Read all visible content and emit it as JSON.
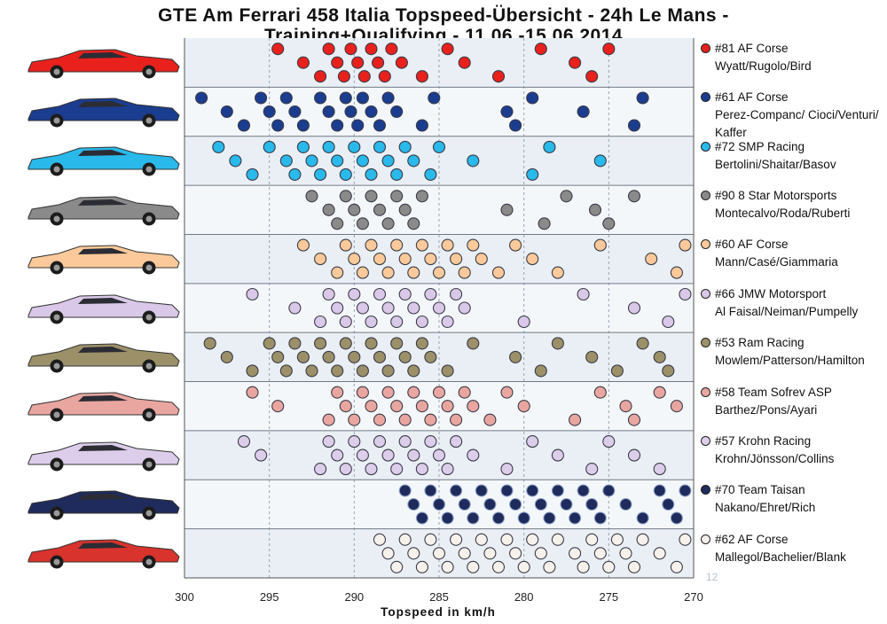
{
  "chart_data": {
    "type": "scatter",
    "title_lines": [
      "GTE Am Ferrari 458 Italia Topspeed-Übersicht - 24h Le Mans -",
      "Training+Qualifying - 11.06.-15.06.2014"
    ],
    "xlabel": "Topspeed in km/h",
    "xlim": [
      300,
      270
    ],
    "x_reversed": true,
    "x_ticks": [
      "300",
      "295",
      "290",
      "285",
      "280",
      "275",
      "270"
    ],
    "grid": true,
    "legend_position": "right",
    "series": [
      {
        "name": "#81 AF Corse",
        "drivers": "Wyatt/Rugolo/Bird",
        "color": "#e8211d",
        "values": [
          294.5,
          293.0,
          292.0,
          291.5,
          291.0,
          290.6,
          290.2,
          289.8,
          289.4,
          289.0,
          288.6,
          288.2,
          287.8,
          287.2,
          286.0,
          284.5,
          283.5,
          281.5,
          279.0,
          277.0,
          276.0,
          275.0
        ]
      },
      {
        "name": "#61 AF Corse",
        "drivers": "Perez-Companc/ Cioci/Venturi/ Kaffer",
        "color": "#1b3d8f",
        "values": [
          299.0,
          297.5,
          296.5,
          295.5,
          295.0,
          294.5,
          294.0,
          293.5,
          293.0,
          292.0,
          291.5,
          291.0,
          290.5,
          290.2,
          289.8,
          289.5,
          289.0,
          288.5,
          288.0,
          287.5,
          286.0,
          285.3,
          281.0,
          280.5,
          279.5,
          276.5,
          273.5,
          273.0
        ]
      },
      {
        "name": "#72 SMP Racing",
        "drivers": "Bertolini/Shaitar/Basov",
        "color": "#29b9ea",
        "values": [
          298.0,
          297.0,
          296.0,
          295.0,
          294.0,
          293.5,
          293.0,
          292.5,
          292.0,
          291.5,
          291.0,
          290.5,
          290.0,
          289.5,
          289.0,
          288.5,
          288.0,
          287.5,
          287.0,
          286.5,
          285.5,
          285.0,
          283.0,
          279.5,
          278.5,
          275.5
        ]
      },
      {
        "name": "#90 8 Star Motorsports",
        "drivers": "Montecalvo/Roda/Ruberti",
        "color": "#8a8a8a",
        "values": [
          292.5,
          291.5,
          291.0,
          290.5,
          290.0,
          289.5,
          289.0,
          288.5,
          288.0,
          287.5,
          287.0,
          286.5,
          286.0,
          281.0,
          278.8,
          277.5,
          275.8,
          275.0,
          273.5
        ]
      },
      {
        "name": "#60 AF Corse",
        "drivers": "Mann/Casé/Giammaria",
        "color": "#fcc99a",
        "values": [
          293.0,
          292.0,
          291.0,
          290.5,
          290.0,
          289.5,
          289.0,
          288.5,
          288.0,
          287.5,
          287.0,
          286.5,
          286.0,
          285.5,
          285.0,
          284.5,
          284.0,
          283.5,
          283.0,
          282.5,
          281.5,
          280.5,
          279.5,
          278.0,
          275.5,
          272.5,
          271.0,
          270.5
        ]
      },
      {
        "name": "#66 JMW Motorsport",
        "drivers": "Al Faisal/Neiman/Pumpelly",
        "color": "#d9c8e8",
        "values": [
          296.0,
          293.5,
          292.0,
          291.5,
          291.0,
          290.5,
          290.0,
          289.5,
          289.0,
          288.5,
          288.0,
          287.5,
          287.0,
          286.5,
          286.0,
          285.5,
          285.0,
          284.5,
          284.0,
          283.5,
          280.0,
          276.5,
          273.5,
          271.5,
          270.5
        ]
      },
      {
        "name": "#53 Ram Racing",
        "drivers": "Mowlem/Patterson/Hamilton",
        "color": "#9c9069",
        "values": [
          298.5,
          297.5,
          296.0,
          295.0,
          294.5,
          294.0,
          293.5,
          293.0,
          292.5,
          292.0,
          291.5,
          291.0,
          290.5,
          290.0,
          289.5,
          289.0,
          288.5,
          288.0,
          287.5,
          287.0,
          286.5,
          286.0,
          285.5,
          284.5,
          283.0,
          280.5,
          279.0,
          278.0,
          276.0,
          274.5,
          273.0,
          272.0,
          271.5
        ]
      },
      {
        "name": "#58 Team Sofrev ASP",
        "drivers": "Barthez/Pons/Ayari",
        "color": "#e9a6a0",
        "values": [
          296.0,
          294.5,
          291.5,
          291.0,
          290.5,
          290.0,
          289.5,
          289.0,
          288.5,
          288.0,
          287.5,
          287.0,
          286.5,
          286.0,
          285.5,
          285.0,
          284.5,
          284.0,
          283.5,
          283.0,
          282.0,
          281.0,
          280.0,
          277.0,
          275.5,
          274.0,
          273.5,
          272.0,
          271.0
        ]
      },
      {
        "name": "#57 Krohn Racing",
        "drivers": "Krohn/Jönsson/Collins",
        "color": "#dccdea",
        "values": [
          296.5,
          295.5,
          292.0,
          291.5,
          291.0,
          290.5,
          290.0,
          289.5,
          289.0,
          288.5,
          288.0,
          287.5,
          287.0,
          286.5,
          286.0,
          285.5,
          285.0,
          284.5,
          284.0,
          283.0,
          281.0,
          279.5,
          278.0,
          276.0,
          275.0,
          273.5,
          272.0
        ]
      },
      {
        "name": "#70 Team Taisan",
        "drivers": "Nakano/Ehret/Rich",
        "color": "#1e2b5c",
        "values": [
          287.0,
          286.5,
          286.0,
          285.5,
          285.0,
          284.5,
          284.0,
          283.5,
          283.0,
          282.5,
          282.0,
          281.5,
          281.0,
          280.5,
          280.0,
          279.5,
          279.0,
          278.5,
          278.0,
          277.5,
          277.0,
          276.5,
          276.0,
          275.5,
          275.0,
          274.0,
          273.0,
          272.0,
          271.5,
          271.0,
          270.5
        ]
      },
      {
        "name": "#62 AF Corse",
        "drivers": "Mallegol/Bachelier/Blank",
        "color": "#f6f1ea",
        "values": [
          288.5,
          288.0,
          287.5,
          287.0,
          286.5,
          286.0,
          285.5,
          285.0,
          284.5,
          284.0,
          283.5,
          283.0,
          282.5,
          282.0,
          281.5,
          281.0,
          280.5,
          280.0,
          279.5,
          279.0,
          278.5,
          278.0,
          277.0,
          276.5,
          276.0,
          275.5,
          275.0,
          274.5,
          274.0,
          273.5,
          273.0,
          272.0,
          271.0,
          270.5
        ]
      }
    ]
  },
  "stray_number": "12"
}
